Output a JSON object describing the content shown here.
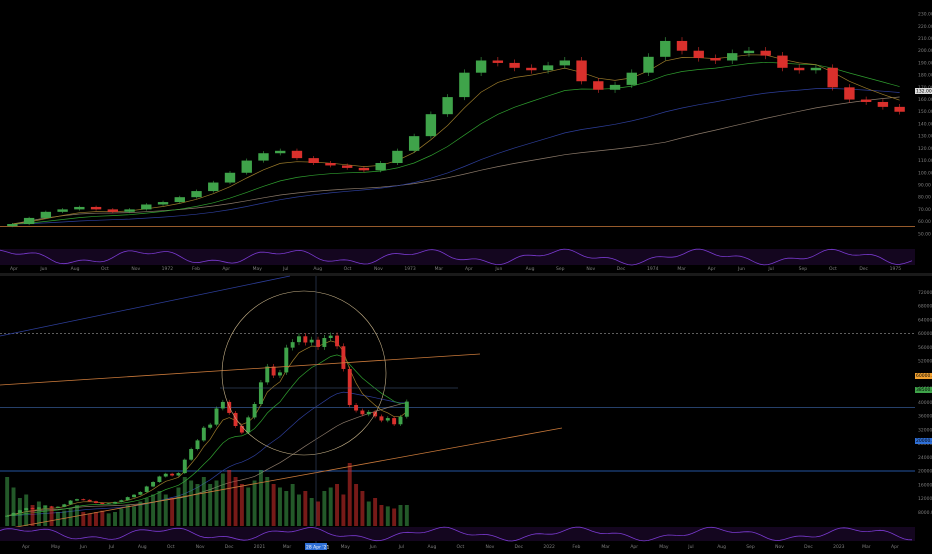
{
  "colors": {
    "background": "#000000",
    "up": "#3fa34a",
    "down": "#d9302c",
    "ema_short": "#9a7a2a",
    "ema_mid": "#2f9e2f",
    "ema_long": "#2d3e9a",
    "sma_200": "#8c7a6a",
    "oscillator": "#7a3ad0",
    "price_tag_top": "#dcdcdc",
    "price_tag_mid": "#f0a030",
    "price_tag_green": "#3fa34a",
    "price_tag_blue": "#2f6fd6"
  },
  "top_panel": {
    "x_labels": [
      "Apr",
      "Jun",
      "Aug",
      "Oct",
      "Nov",
      "1972",
      "Feb",
      "Apr",
      "May",
      "Jul",
      "Aug",
      "Oct",
      "Nov",
      "1973",
      "Mar",
      "Apr",
      "Jun",
      "Aug",
      "Sep",
      "Nov",
      "Dec",
      "1974",
      "Mar",
      "Apr",
      "Jun",
      "Jul",
      "Sep",
      "Oct",
      "Dec",
      "1975"
    ],
    "last_price_tag": "132.00"
  },
  "bottom_panel": {
    "x_labels": [
      "Apr",
      "May",
      "Jun",
      "Jul",
      "Aug",
      "Oct",
      "Nov",
      "Dec",
      "2021",
      "Mar",
      "Apr",
      "May",
      "Jun",
      "Jul",
      "Aug",
      "Oct",
      "Nov",
      "Dec",
      "2022",
      "Feb",
      "Mar",
      "Apr",
      "May",
      "Jul",
      "Aug",
      "Sep",
      "Nov",
      "Dec",
      "2023",
      "Mar",
      "Apr"
    ],
    "highlighted_date": "28 Apr '21",
    "price_tag_orange": "60000.00",
    "price_tag_green": "38500.00",
    "price_tag_blue": "20000.00"
  },
  "chart_data": [
    {
      "type": "candlestick",
      "panel": "top",
      "period": "weekly",
      "x_start": "1971-04",
      "x_end": "1975-01",
      "ylim": [
        40,
        235
      ],
      "y_ticks": [
        230,
        220,
        210,
        200,
        190,
        180,
        170,
        160,
        150,
        140,
        130,
        120,
        110,
        100,
        90,
        80,
        70,
        60,
        50
      ],
      "horizontal_line": 56,
      "series_close": [
        58,
        63,
        68,
        70,
        72,
        70,
        68,
        70,
        74,
        76,
        80,
        85,
        92,
        100,
        110,
        116,
        118,
        112,
        108,
        106,
        104,
        102,
        108,
        118,
        130,
        148,
        162,
        182,
        192,
        190,
        186,
        184,
        188,
        192,
        175,
        168,
        172,
        182,
        195,
        208,
        200,
        194,
        192,
        198,
        200,
        196,
        186,
        184,
        186,
        170,
        160,
        158,
        154,
        150
      ]
    },
    {
      "type": "candlestick",
      "panel": "bottom",
      "period": "weekly",
      "x_start": "2020-04",
      "x_end": "2023-04",
      "ylim": [
        4000,
        75000
      ],
      "y_ticks": [
        72000,
        68000,
        64000,
        60000,
        56000,
        52000,
        48000,
        44000,
        40000,
        36000,
        32000,
        28000,
        24000,
        20000,
        16000,
        12000,
        8000
      ],
      "levels": [
        60000,
        38500,
        20000
      ],
      "series_close": [
        7000,
        7800,
        8600,
        9200,
        9000,
        9400,
        9700,
        9300,
        9600,
        10300,
        11400,
        11800,
        11600,
        11200,
        10700,
        10500,
        10600,
        11000,
        11500,
        12400,
        13100,
        13900,
        15500,
        16800,
        18400,
        19200,
        18700,
        19400,
        23300,
        26400,
        28900,
        32600,
        33500,
        38200,
        40100,
        36900,
        33100,
        31200,
        35600,
        39500,
        45800,
        50400,
        47800,
        48700,
        55900,
        57500,
        59200,
        57400,
        58200,
        56100,
        58700,
        59400,
        56300,
        49700,
        39200,
        37600,
        36500,
        37200,
        35900,
        34700,
        35400,
        33600,
        35800,
        40200
      ],
      "volume_relative": [
        0.7,
        0.55,
        0.4,
        0.45,
        0.3,
        0.35,
        0.3,
        0.25,
        0.2,
        0.22,
        0.25,
        0.3,
        0.2,
        0.18,
        0.2,
        0.22,
        0.18,
        0.2,
        0.25,
        0.3,
        0.28,
        0.35,
        0.4,
        0.45,
        0.5,
        0.45,
        0.4,
        0.55,
        0.7,
        0.65,
        0.6,
        0.7,
        0.6,
        0.65,
        0.75,
        0.8,
        0.7,
        0.6,
        0.55,
        0.65,
        0.8,
        0.7,
        0.6,
        0.55,
        0.5,
        0.6,
        0.45,
        0.5,
        0.4,
        0.35,
        0.5,
        0.55,
        0.6,
        0.45,
        0.9,
        0.6,
        0.5,
        0.35,
        0.4,
        0.3,
        0.28,
        0.25,
        0.3,
        0.3
      ]
    }
  ]
}
